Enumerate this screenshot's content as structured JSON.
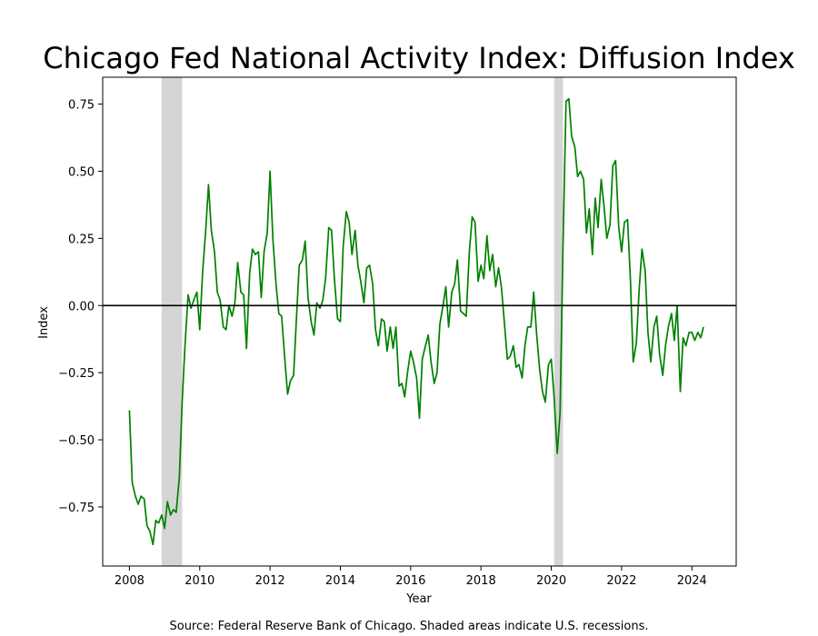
{
  "chart_data": {
    "type": "line",
    "title": "Chicago Fed National Activity Index: Diffusion Index",
    "xlabel": "Year",
    "ylabel": "Index",
    "xlim": [
      2007.24,
      2025.26
    ],
    "ylim": [
      -0.97,
      0.85
    ],
    "x_ticks": [
      2008,
      2010,
      2012,
      2014,
      2016,
      2018,
      2020,
      2022,
      2024
    ],
    "x_tick_labels": [
      "2008",
      "2010",
      "2012",
      "2014",
      "2016",
      "2018",
      "2020",
      "2022",
      "2024"
    ],
    "y_ticks": [
      -0.75,
      -0.5,
      -0.25,
      0.0,
      0.25,
      0.5,
      0.75
    ],
    "y_tick_labels": [
      "−0.75",
      "−0.50",
      "−0.25",
      "0.00",
      "0.25",
      "0.50",
      "0.75"
    ],
    "zero_line": 0,
    "recessions": [
      [
        2008.917,
        2009.5
      ],
      [
        2020.083,
        2020.333
      ]
    ],
    "grid": false,
    "series": [
      {
        "color": "#008000",
        "points": [
          [
            2008.0,
            -0.39
          ],
          [
            2008.08,
            -0.66
          ],
          [
            2008.17,
            -0.71
          ],
          [
            2008.25,
            -0.74
          ],
          [
            2008.33,
            -0.71
          ],
          [
            2008.42,
            -0.72
          ],
          [
            2008.5,
            -0.82
          ],
          [
            2008.58,
            -0.84
          ],
          [
            2008.67,
            -0.89
          ],
          [
            2008.75,
            -0.8
          ],
          [
            2008.83,
            -0.81
          ],
          [
            2008.92,
            -0.78
          ],
          [
            2009.0,
            -0.83
          ],
          [
            2009.08,
            -0.73
          ],
          [
            2009.17,
            -0.78
          ],
          [
            2009.25,
            -0.76
          ],
          [
            2009.33,
            -0.77
          ],
          [
            2009.42,
            -0.64
          ],
          [
            2009.5,
            -0.36
          ],
          [
            2009.58,
            -0.15
          ],
          [
            2009.67,
            0.04
          ],
          [
            2009.75,
            -0.01
          ],
          [
            2009.83,
            0.02
          ],
          [
            2009.92,
            0.05
          ],
          [
            2010.0,
            -0.09
          ],
          [
            2010.08,
            0.12
          ],
          [
            2010.17,
            0.28
          ],
          [
            2010.25,
            0.45
          ],
          [
            2010.33,
            0.28
          ],
          [
            2010.42,
            0.2
          ],
          [
            2010.5,
            0.05
          ],
          [
            2010.58,
            0.02
          ],
          [
            2010.67,
            -0.08
          ],
          [
            2010.75,
            -0.09
          ],
          [
            2010.83,
            0.0
          ],
          [
            2010.92,
            -0.04
          ],
          [
            2011.0,
            0.01
          ],
          [
            2011.08,
            0.16
          ],
          [
            2011.17,
            0.05
          ],
          [
            2011.25,
            0.04
          ],
          [
            2011.33,
            -0.16
          ],
          [
            2011.42,
            0.12
          ],
          [
            2011.5,
            0.21
          ],
          [
            2011.58,
            0.19
          ],
          [
            2011.67,
            0.2
          ],
          [
            2011.75,
            0.03
          ],
          [
            2011.83,
            0.2
          ],
          [
            2011.92,
            0.27
          ],
          [
            2012.0,
            0.5
          ],
          [
            2012.08,
            0.25
          ],
          [
            2012.17,
            0.08
          ],
          [
            2012.25,
            -0.03
          ],
          [
            2012.33,
            -0.04
          ],
          [
            2012.42,
            -0.2
          ],
          [
            2012.5,
            -0.33
          ],
          [
            2012.58,
            -0.28
          ],
          [
            2012.67,
            -0.26
          ],
          [
            2012.75,
            -0.05
          ],
          [
            2012.83,
            0.15
          ],
          [
            2012.92,
            0.17
          ],
          [
            2013.0,
            0.24
          ],
          [
            2013.08,
            0.03
          ],
          [
            2013.17,
            -0.06
          ],
          [
            2013.25,
            -0.11
          ],
          [
            2013.33,
            0.01
          ],
          [
            2013.42,
            -0.01
          ],
          [
            2013.5,
            0.02
          ],
          [
            2013.58,
            0.1
          ],
          [
            2013.67,
            0.29
          ],
          [
            2013.75,
            0.28
          ],
          [
            2013.83,
            0.1
          ],
          [
            2013.92,
            -0.05
          ],
          [
            2014.0,
            -0.06
          ],
          [
            2014.08,
            0.22
          ],
          [
            2014.17,
            0.35
          ],
          [
            2014.25,
            0.31
          ],
          [
            2014.33,
            0.19
          ],
          [
            2014.42,
            0.28
          ],
          [
            2014.5,
            0.15
          ],
          [
            2014.58,
            0.09
          ],
          [
            2014.67,
            0.01
          ],
          [
            2014.75,
            0.14
          ],
          [
            2014.83,
            0.15
          ],
          [
            2014.92,
            0.08
          ],
          [
            2015.0,
            -0.09
          ],
          [
            2015.08,
            -0.15
          ],
          [
            2015.17,
            -0.05
          ],
          [
            2015.25,
            -0.06
          ],
          [
            2015.33,
            -0.17
          ],
          [
            2015.42,
            -0.08
          ],
          [
            2015.5,
            -0.16
          ],
          [
            2015.58,
            -0.08
          ],
          [
            2015.67,
            -0.3
          ],
          [
            2015.75,
            -0.29
          ],
          [
            2015.83,
            -0.34
          ],
          [
            2015.92,
            -0.24
          ],
          [
            2016.0,
            -0.17
          ],
          [
            2016.08,
            -0.21
          ],
          [
            2016.17,
            -0.27
          ],
          [
            2016.25,
            -0.42
          ],
          [
            2016.33,
            -0.2
          ],
          [
            2016.42,
            -0.15
          ],
          [
            2016.5,
            -0.11
          ],
          [
            2016.58,
            -0.21
          ],
          [
            2016.67,
            -0.29
          ],
          [
            2016.75,
            -0.25
          ],
          [
            2016.83,
            -0.07
          ],
          [
            2016.92,
            0.0
          ],
          [
            2017.0,
            0.07
          ],
          [
            2017.08,
            -0.08
          ],
          [
            2017.17,
            0.05
          ],
          [
            2017.25,
            0.08
          ],
          [
            2017.33,
            0.17
          ],
          [
            2017.42,
            -0.02
          ],
          [
            2017.5,
            -0.03
          ],
          [
            2017.58,
            -0.04
          ],
          [
            2017.67,
            0.2
          ],
          [
            2017.75,
            0.33
          ],
          [
            2017.83,
            0.31
          ],
          [
            2017.92,
            0.09
          ],
          [
            2018.0,
            0.15
          ],
          [
            2018.08,
            0.1
          ],
          [
            2018.17,
            0.26
          ],
          [
            2018.25,
            0.13
          ],
          [
            2018.33,
            0.19
          ],
          [
            2018.42,
            0.07
          ],
          [
            2018.5,
            0.14
          ],
          [
            2018.58,
            0.07
          ],
          [
            2018.67,
            -0.07
          ],
          [
            2018.75,
            -0.2
          ],
          [
            2018.83,
            -0.19
          ],
          [
            2018.92,
            -0.15
          ],
          [
            2019.0,
            -0.23
          ],
          [
            2019.08,
            -0.22
          ],
          [
            2019.17,
            -0.27
          ],
          [
            2019.25,
            -0.15
          ],
          [
            2019.33,
            -0.08
          ],
          [
            2019.42,
            -0.08
          ],
          [
            2019.5,
            0.05
          ],
          [
            2019.58,
            -0.1
          ],
          [
            2019.67,
            -0.24
          ],
          [
            2019.75,
            -0.32
          ],
          [
            2019.83,
            -0.36
          ],
          [
            2019.92,
            -0.22
          ],
          [
            2020.0,
            -0.2
          ],
          [
            2020.08,
            -0.34
          ],
          [
            2020.17,
            -0.55
          ],
          [
            2020.25,
            -0.4
          ],
          [
            2020.33,
            0.2
          ],
          [
            2020.42,
            0.76
          ],
          [
            2020.5,
            0.77
          ],
          [
            2020.58,
            0.63
          ],
          [
            2020.67,
            0.59
          ],
          [
            2020.75,
            0.48
          ],
          [
            2020.83,
            0.5
          ],
          [
            2020.92,
            0.47
          ],
          [
            2021.0,
            0.27
          ],
          [
            2021.08,
            0.36
          ],
          [
            2021.17,
            0.19
          ],
          [
            2021.25,
            0.4
          ],
          [
            2021.33,
            0.29
          ],
          [
            2021.42,
            0.47
          ],
          [
            2021.5,
            0.37
          ],
          [
            2021.58,
            0.25
          ],
          [
            2021.67,
            0.3
          ],
          [
            2021.75,
            0.52
          ],
          [
            2021.83,
            0.54
          ],
          [
            2021.92,
            0.29
          ],
          [
            2022.0,
            0.2
          ],
          [
            2022.08,
            0.31
          ],
          [
            2022.17,
            0.32
          ],
          [
            2022.25,
            0.1
          ],
          [
            2022.33,
            -0.21
          ],
          [
            2022.42,
            -0.14
          ],
          [
            2022.5,
            0.06
          ],
          [
            2022.58,
            0.21
          ],
          [
            2022.67,
            0.13
          ],
          [
            2022.75,
            -0.1
          ],
          [
            2022.83,
            -0.21
          ],
          [
            2022.92,
            -0.08
          ],
          [
            2023.0,
            -0.04
          ],
          [
            2023.08,
            -0.18
          ],
          [
            2023.17,
            -0.26
          ],
          [
            2023.25,
            -0.15
          ],
          [
            2023.33,
            -0.08
          ],
          [
            2023.42,
            -0.03
          ],
          [
            2023.5,
            -0.13
          ],
          [
            2023.58,
            0.0
          ],
          [
            2023.67,
            -0.32
          ],
          [
            2023.75,
            -0.12
          ],
          [
            2023.83,
            -0.15
          ],
          [
            2023.92,
            -0.1
          ],
          [
            2024.0,
            -0.1
          ],
          [
            2024.08,
            -0.13
          ],
          [
            2024.17,
            -0.1
          ],
          [
            2024.25,
            -0.12
          ],
          [
            2024.33,
            -0.08
          ]
        ]
      }
    ]
  },
  "footer": {
    "source": "Source: Federal Reserve Bank of Chicago. Shaded areas indicate U.S. recessions."
  }
}
